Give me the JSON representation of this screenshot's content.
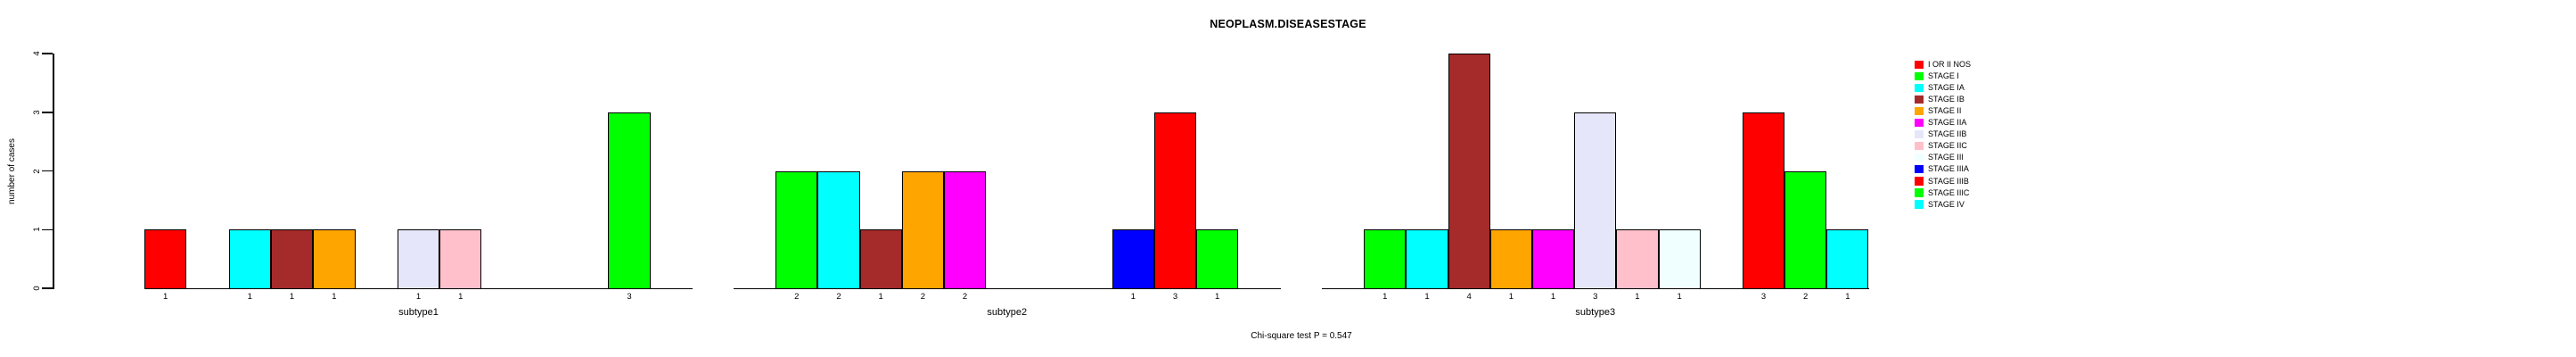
{
  "chart_data": {
    "type": "bar",
    "title": "NEOPLASM.DISEASESTAGE",
    "ylabel": "number of cases",
    "ylim": [
      0,
      4
    ],
    "yticks": [
      0,
      1,
      2,
      3,
      4
    ],
    "grid": false,
    "legend_position": "right",
    "caption": "Chi-square test P = 0.547",
    "stages": [
      {
        "label": "I OR II NOS",
        "color": "#FF0000"
      },
      {
        "label": "STAGE I",
        "color": "#00FF00"
      },
      {
        "label": "STAGE IA",
        "color": "#00FFFF"
      },
      {
        "label": "STAGE IB",
        "color": "#A52A2A"
      },
      {
        "label": "STAGE II",
        "color": "#FFA500"
      },
      {
        "label": "STAGE IIA",
        "color": "#FF00FF"
      },
      {
        "label": "STAGE IIB",
        "color": "#E6E6FA"
      },
      {
        "label": "STAGE IIC",
        "color": "#FFC0CB"
      },
      {
        "label": "STAGE III",
        "color": "#F0FFFF"
      },
      {
        "label": "STAGE IIIA",
        "color": "#0000FF"
      },
      {
        "label": "STAGE IIIB",
        "color": "#FF0000"
      },
      {
        "label": "STAGE IIIC",
        "color": "#00FF00"
      },
      {
        "label": "STAGE IV",
        "color": "#00FFFF"
      }
    ],
    "groups": [
      {
        "label": "subtype1",
        "values": [
          1,
          0,
          1,
          1,
          1,
          0,
          1,
          1,
          0,
          0,
          0,
          3,
          0
        ]
      },
      {
        "label": "subtype2",
        "values": [
          0,
          2,
          2,
          1,
          2,
          2,
          0,
          0,
          0,
          1,
          3,
          1,
          0
        ]
      },
      {
        "label": "subtype3",
        "values": [
          0,
          1,
          1,
          4,
          1,
          1,
          3,
          1,
          1,
          0,
          3,
          2,
          1
        ]
      }
    ]
  }
}
